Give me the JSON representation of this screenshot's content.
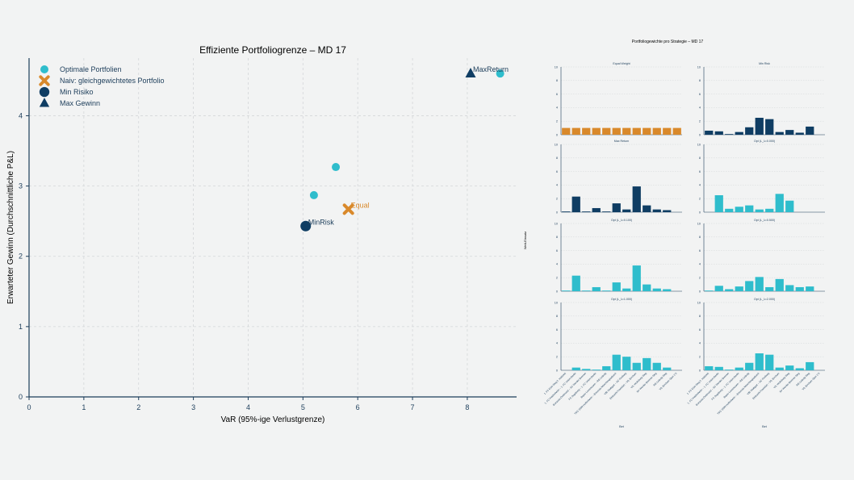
{
  "colors": {
    "teal": "#2fbdcc",
    "navy": "#0f3d63",
    "orange": "#d9892b",
    "axis": "#1c3d5a",
    "grid": "#d4d7d9",
    "text": "#1c3d5a"
  },
  "chart_data": [
    {
      "type": "scatter",
      "title": "Effiziente Portfoliogrenze – MD 17",
      "xlabel": "VaR (95%-ige Verlustgrenze)",
      "ylabel": "Erwarteter Gewinn (Durchschnittliche P&L)",
      "xlim": [
        0,
        8.9
      ],
      "ylim": [
        0,
        4.82
      ],
      "xticks": [
        0,
        1,
        2,
        3,
        4,
        5,
        6,
        7,
        8
      ],
      "yticks": [
        0,
        1,
        2,
        3,
        4
      ],
      "grid": true,
      "legend_position": "top-left",
      "legend": [
        {
          "label": "Optimale Portfolien",
          "marker": "circle",
          "color": "#2fbdcc"
        },
        {
          "label": "Naiv: gleichgewichtetes Portfolio",
          "marker": "x",
          "color": "#d9892b"
        },
        {
          "label": "Min Risiko",
          "marker": "circle-large",
          "color": "#0f3d63"
        },
        {
          "label": "Max Gewinn",
          "marker": "triangle",
          "color": "#0f3d63"
        }
      ],
      "series": [
        {
          "marker": "circle",
          "color": "#2fbdcc",
          "points": [
            {
              "x": 5.2,
              "y": 2.87
            },
            {
              "x": 5.6,
              "y": 3.27
            },
            {
              "x": 8.6,
              "y": 4.6
            }
          ]
        },
        {
          "marker": "x",
          "color": "#d9892b",
          "points": [
            {
              "x": 5.83,
              "y": 2.67,
              "label": "Equal"
            }
          ]
        },
        {
          "marker": "circle-large",
          "color": "#0f3d63",
          "points": [
            {
              "x": 5.05,
              "y": 2.43,
              "label": "MinRisk"
            }
          ]
        },
        {
          "marker": "triangle",
          "color": "#0f3d63",
          "points": [
            {
              "x": 8.06,
              "y": 4.6,
              "label": "MaxReturn"
            }
          ]
        }
      ]
    },
    {
      "type": "bar",
      "title": "Portfoliogewichte pro Strategie – MD 17",
      "xlabel": "Bet",
      "ylabel": "Wett-Einsatz",
      "ylim": [
        0,
        10
      ],
      "yticks": [
        0,
        2,
        4,
        6,
        8,
        10
      ],
      "categories": [
        "1. FC Köln Sieg 2. Halbzeit",
        "1. FC Heidenheim – 1. FC Union Berlin",
        "Borussia Dortmund – SV Werder Bremen",
        "FC Augsburg – 1. FC Union Berlin",
        "Bayer Leverkusen – RB Leipzig",
        "TSG 1899 Hoffenheim – Borussia Mönchengladbach",
        "VfB Stuttgart – SC Freiburg",
        "Eintracht Frankfurt – VfL Bochum",
        "VfL Wolfsburg Sieg",
        "SV Werder Bremen Sieg",
        "RB Leipzig Sieg",
        "VfL Bochum Über 2.5"
      ],
      "panels": [
        {
          "title": "Equal Weight",
          "color": "#d9892b",
          "values": [
            1.0,
            1.0,
            1.0,
            1.0,
            1.0,
            1.0,
            1.0,
            1.0,
            1.0,
            1.0,
            1.0,
            1.0
          ]
        },
        {
          "title": "Min Risk",
          "color": "#0f3d63",
          "values": [
            0.6,
            0.5,
            0.1,
            0.4,
            1.1,
            2.5,
            2.3,
            0.4,
            0.7,
            0.3,
            1.2,
            0.0
          ]
        },
        {
          "title": "Max Return",
          "color": "#0f3d63",
          "values": [
            0.1,
            2.3,
            0.1,
            0.6,
            0.1,
            1.3,
            0.4,
            3.8,
            1.0,
            0.4,
            0.3,
            0.0
          ]
        },
        {
          "title": "Opt (L_λ=0.000)",
          "color": "#2fbdcc",
          "values": [
            0.0,
            2.5,
            0.5,
            0.8,
            1.0,
            0.4,
            0.5,
            2.7,
            1.7,
            0.0,
            0.0,
            0.0
          ]
        },
        {
          "title": "Opt (L_λ=0.100)",
          "color": "#2fbdcc",
          "values": [
            0.1,
            2.3,
            0.1,
            0.6,
            0.1,
            1.3,
            0.4,
            3.8,
            1.0,
            0.4,
            0.3,
            0.0
          ]
        },
        {
          "title": "Opt (L_λ=0.500)",
          "color": "#2fbdcc",
          "values": [
            0.1,
            0.8,
            0.3,
            0.7,
            1.5,
            2.1,
            0.6,
            1.8,
            0.9,
            0.6,
            0.7,
            0.0
          ]
        },
        {
          "title": "Opt (L_λ=1.000)",
          "color": "#2fbdcc",
          "values": [
            0.0,
            0.4,
            0.2,
            0.1,
            0.6,
            2.3,
            2.0,
            1.1,
            1.8,
            1.1,
            0.4,
            0.0
          ]
        },
        {
          "title": "Opt (L_λ=2.000)",
          "color": "#2fbdcc",
          "values": [
            0.6,
            0.5,
            0.1,
            0.4,
            1.1,
            2.5,
            2.3,
            0.4,
            0.7,
            0.3,
            1.2,
            0.0
          ]
        }
      ]
    }
  ]
}
